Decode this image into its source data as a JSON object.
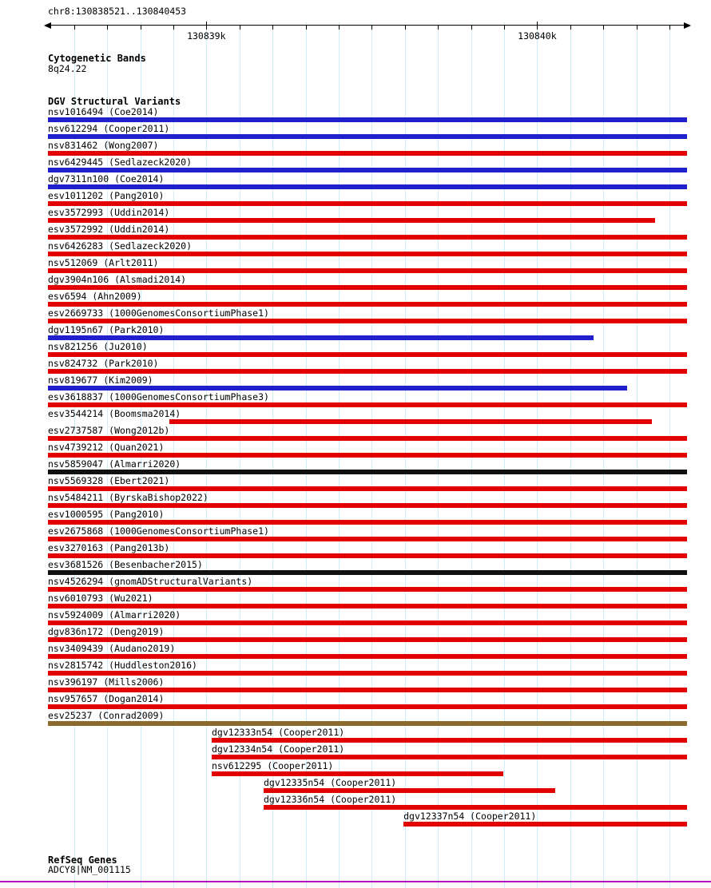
{
  "header": {
    "region": "chr8:130838521..130840453"
  },
  "colors": {
    "red": "#e30000",
    "blue": "#2020cc",
    "black": "#101010",
    "brown": "#8b6a2b",
    "gene": "#b400b4",
    "grid": "#cdeef6"
  },
  "sections": {
    "cytogenetic": {
      "title": "Cytogenetic Bands",
      "band": "8q24.22"
    },
    "dgv": {
      "title": "DGV Structural Variants"
    },
    "refseq": {
      "title": "RefSeq Genes",
      "gene": "ADCY8|NM_001115"
    }
  },
  "chart_data": {
    "type": "bar",
    "subtype": "genome-browser-interval-tracks",
    "region": {
      "chrom": "chr8",
      "start": 130838521,
      "end": 130840453
    },
    "axis": {
      "tick_positions": [
        130839000,
        130840000
      ],
      "tick_labels": [
        "130839k",
        "130840k"
      ],
      "minor_tick_interval": 100
    },
    "tracks": [
      {
        "label": "nsv1016494 (Coe2014)",
        "color": "blue",
        "start": 130838521,
        "end": 130840453,
        "label_align": "left"
      },
      {
        "label": "nsv612294 (Cooper2011)",
        "color": "blue",
        "start": 130838521,
        "end": 130840453,
        "label_align": "left"
      },
      {
        "label": "nsv831462 (Wong2007)",
        "color": "red",
        "start": 130838521,
        "end": 130840453,
        "label_align": "left"
      },
      {
        "label": "nsv6429445 (Sedlazeck2020)",
        "color": "blue",
        "start": 130838521,
        "end": 130840453,
        "label_align": "left"
      },
      {
        "label": "dgv7311n100 (Coe2014)",
        "color": "blue",
        "start": 130838521,
        "end": 130840453,
        "label_align": "left"
      },
      {
        "label": "esv1011202 (Pang2010)",
        "color": "red",
        "start": 130838521,
        "end": 130840453,
        "label_align": "left"
      },
      {
        "label": "esv3572993 (Uddin2014)",
        "color": "red",
        "start": 130838521,
        "end": 130840356,
        "label_align": "left"
      },
      {
        "label": "esv3572992 (Uddin2014)",
        "color": "red",
        "start": 130838521,
        "end": 130840453,
        "label_align": "left"
      },
      {
        "label": "nsv6426283 (Sedlazeck2020)",
        "color": "red",
        "start": 130838521,
        "end": 130840453,
        "label_align": "left"
      },
      {
        "label": "nsv512069 (Arlt2011)",
        "color": "red",
        "start": 130838521,
        "end": 130840453,
        "label_align": "left"
      },
      {
        "label": "dgv3904n106 (Alsmadi2014)",
        "color": "red",
        "start": 130838521,
        "end": 130840453,
        "label_align": "left"
      },
      {
        "label": "esv6594 (Ahn2009)",
        "color": "red",
        "start": 130838521,
        "end": 130840453,
        "label_align": "left"
      },
      {
        "label": "esv2669733 (1000GenomesConsortiumPhase1)",
        "color": "red",
        "start": 130838521,
        "end": 130840453,
        "label_align": "left"
      },
      {
        "label": "dgv1195n67 (Park2010)",
        "color": "blue",
        "start": 130838521,
        "end": 130840171,
        "label_align": "left"
      },
      {
        "label": "nsv821256 (Ju2010)",
        "color": "red",
        "start": 130838521,
        "end": 130840453,
        "label_align": "left"
      },
      {
        "label": "nsv824732 (Park2010)",
        "color": "red",
        "start": 130838521,
        "end": 130840453,
        "label_align": "left"
      },
      {
        "label": "nsv819677 (Kim2009)",
        "color": "blue",
        "start": 130838521,
        "end": 130840272,
        "label_align": "left"
      },
      {
        "label": "esv3618837 (1000GenomesConsortiumPhase3)",
        "color": "red",
        "start": 130838521,
        "end": 130840453,
        "label_align": "left"
      },
      {
        "label": "esv3544214 (Boomsma2014)",
        "color": "red",
        "start": 130838888,
        "end": 130840347,
        "label_align": "left"
      },
      {
        "label": "esv2737587 (Wong2012b)",
        "color": "red",
        "start": 130838521,
        "end": 130840453,
        "label_align": "left"
      },
      {
        "label": "nsv4739212 (Quan2021)",
        "color": "red",
        "start": 130838521,
        "end": 130840453,
        "label_align": "left"
      },
      {
        "label": "nsv5859047 (Almarri2020)",
        "color": "black",
        "start": 130838521,
        "end": 130840453,
        "label_align": "left"
      },
      {
        "label": "nsv5569328 (Ebert2021)",
        "color": "red",
        "start": 130838521,
        "end": 130840453,
        "label_align": "left"
      },
      {
        "label": "nsv5484211 (ByrskaBishop2022)",
        "color": "red",
        "start": 130838521,
        "end": 130840453,
        "label_align": "left"
      },
      {
        "label": "esv1000595 (Pang2010)",
        "color": "red",
        "start": 130838521,
        "end": 130840453,
        "label_align": "left"
      },
      {
        "label": "esv2675868 (1000GenomesConsortiumPhase1)",
        "color": "red",
        "start": 130838521,
        "end": 130840453,
        "label_align": "left"
      },
      {
        "label": "esv3270163 (Pang2013b)",
        "color": "red",
        "start": 130838521,
        "end": 130840453,
        "label_align": "left"
      },
      {
        "label": "esv3681526 (Besenbacher2015)",
        "color": "black",
        "start": 130838521,
        "end": 130840453,
        "label_align": "left"
      },
      {
        "label": "nsv4526294 (gnomADStructuralVariants)",
        "color": "red",
        "start": 130838521,
        "end": 130840453,
        "label_align": "left"
      },
      {
        "label": "nsv6010793 (Wu2021)",
        "color": "red",
        "start": 130838521,
        "end": 130840453,
        "label_align": "left"
      },
      {
        "label": "nsv5924009 (Almarri2020)",
        "color": "red",
        "start": 130838521,
        "end": 130840453,
        "label_align": "left"
      },
      {
        "label": "dgv836n172 (Deng2019)",
        "color": "red",
        "start": 130838521,
        "end": 130840453,
        "label_align": "left"
      },
      {
        "label": "nsv3409439 (Audano2019)",
        "color": "red",
        "start": 130838521,
        "end": 130840453,
        "label_align": "left"
      },
      {
        "label": "nsv2815742 (Huddleston2016)",
        "color": "red",
        "start": 130838521,
        "end": 130840453,
        "label_align": "left"
      },
      {
        "label": "nsv396197 (Mills2006)",
        "color": "red",
        "start": 130838521,
        "end": 130840453,
        "label_align": "left"
      },
      {
        "label": "nsv957657 (Dogan2014)",
        "color": "red",
        "start": 130838521,
        "end": 130840453,
        "label_align": "left"
      },
      {
        "label": "esv25237 (Conrad2009)",
        "color": "brown",
        "start": 130838521,
        "end": 130840453,
        "label_align": "left"
      },
      {
        "label": "dgv12333n54 (Cooper2011)",
        "color": "red",
        "start": 130839016,
        "end": 130840453,
        "label_align": "bar"
      },
      {
        "label": "dgv12334n54 (Cooper2011)",
        "color": "red",
        "start": 130839016,
        "end": 130840453,
        "label_align": "bar"
      },
      {
        "label": "nsv612295 (Cooper2011)",
        "color": "red",
        "start": 130839016,
        "end": 130839898,
        "label_align": "bar"
      },
      {
        "label": "dgv12335n54 (Cooper2011)",
        "color": "red",
        "start": 130839173,
        "end": 130840055,
        "label_align": "bar"
      },
      {
        "label": "dgv12336n54 (Cooper2011)",
        "color": "red",
        "start": 130839173,
        "end": 130840453,
        "label_align": "bar"
      },
      {
        "label": "dgv12337n54 (Cooper2011)",
        "color": "red",
        "start": 130839596,
        "end": 130840453,
        "label_align": "bar"
      }
    ]
  }
}
